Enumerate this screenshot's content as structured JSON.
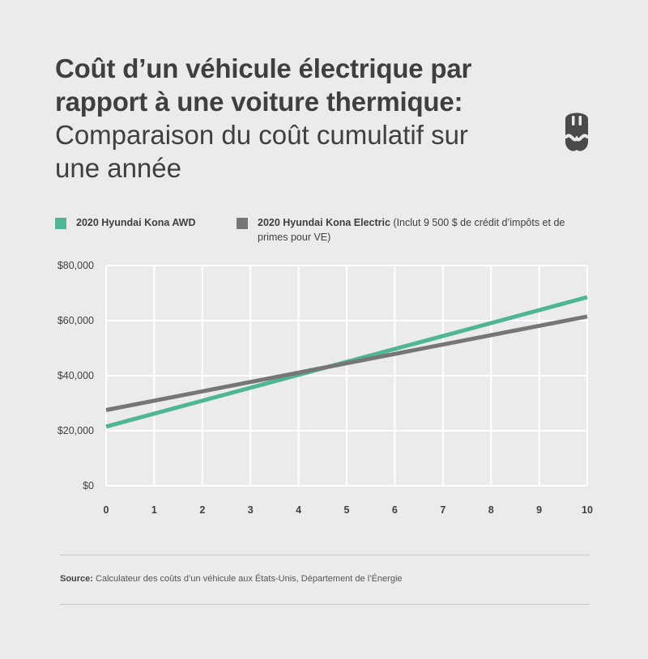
{
  "title": {
    "bold_line1": "Coût d’un véhicule électrique par",
    "bold_line2": "rapport à une voiture  thermique:",
    "subtitle_line1": "Comparaison du coût cumulatif sur",
    "subtitle_line2": "une année"
  },
  "legend": {
    "series1_name": "2020 Hyundai Kona AWD",
    "series2_name": "2020 Hyundai Kona Electric",
    "series2_note": " (Inclut 9 500 $ de crédit d’impôts et de primes pour VE)"
  },
  "source": {
    "label": "Source:",
    "text": " Calculateur des coûts d’un véhicule aux États-Unis, Département de l’Énergie"
  },
  "logo_icon": "plug-icon",
  "colors": {
    "series1": "#4fb595",
    "series2": "#777676",
    "background": "#ebebeb",
    "grid": "#ffffff"
  },
  "chart_data": {
    "type": "line",
    "x": [
      0,
      10
    ],
    "xticks": [
      "0",
      "1",
      "2",
      "3",
      "4",
      "5",
      "6",
      "7",
      "8",
      "9",
      "10"
    ],
    "yticks": [
      "$0",
      "$20,000",
      "$40,000",
      "$60,000",
      "$80,000"
    ],
    "xlim": [
      0,
      10
    ],
    "ylim": [
      0,
      80000
    ],
    "grid": true,
    "legend_position": "top",
    "series": [
      {
        "name": "2020 Hyundai Kona AWD",
        "values": [
          21500,
          68500
        ]
      },
      {
        "name": "2020 Hyundai Kona Electric",
        "values": [
          27500,
          61500
        ]
      }
    ]
  }
}
